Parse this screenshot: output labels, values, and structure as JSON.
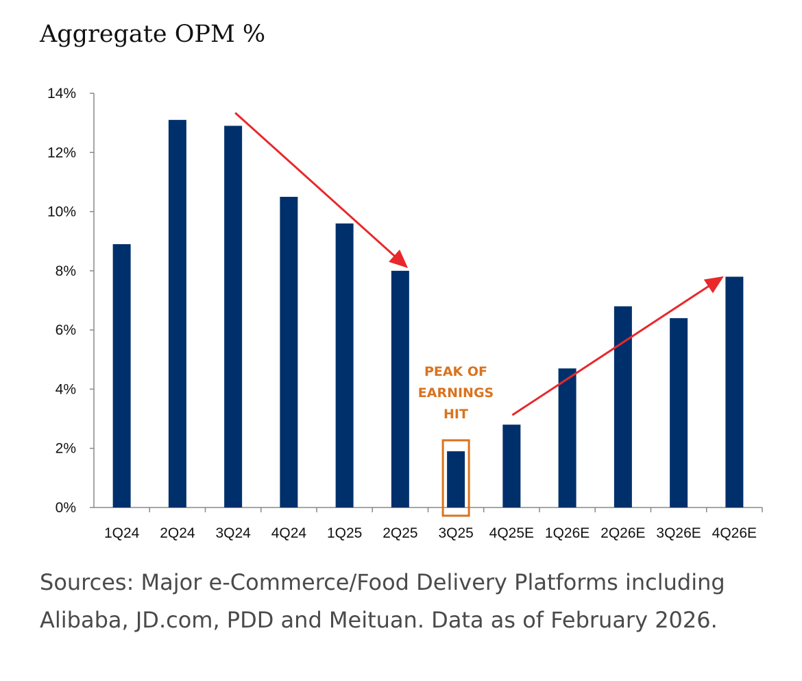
{
  "chart_data": {
    "type": "bar",
    "title": "Aggregate OPM %",
    "xlabel": "",
    "ylabel": "",
    "ylim": [
      0,
      14
    ],
    "yticks": [
      "0%",
      "2%",
      "4%",
      "6%",
      "8%",
      "10%",
      "12%",
      "14%"
    ],
    "grid": false,
    "categories": [
      "1Q24",
      "2Q24",
      "3Q24",
      "4Q24",
      "1Q25",
      "2Q25",
      "3Q25",
      "4Q25E",
      "1Q26E",
      "2Q26E",
      "3Q26E",
      "4Q26E"
    ],
    "values": [
      8.9,
      13.1,
      12.9,
      10.5,
      9.6,
      8.0,
      1.9,
      2.8,
      4.7,
      6.8,
      6.4,
      7.8
    ],
    "bar_color": "#00306b",
    "annotations": {
      "highlight_category": "3Q25",
      "highlight_color": "#d9731f",
      "label_lines": [
        "PEAK OF",
        "EARNINGS",
        "HIT"
      ],
      "arrow_color": "#e8282b",
      "trend_down": [
        "3Q24",
        "2Q25"
      ],
      "trend_up": [
        "4Q25E",
        "4Q26E"
      ]
    }
  },
  "sources": "Sources: Major e-Commerce/Food Delivery Platforms including Alibaba, JD.com, PDD and Meituan. Data as of February 2026."
}
